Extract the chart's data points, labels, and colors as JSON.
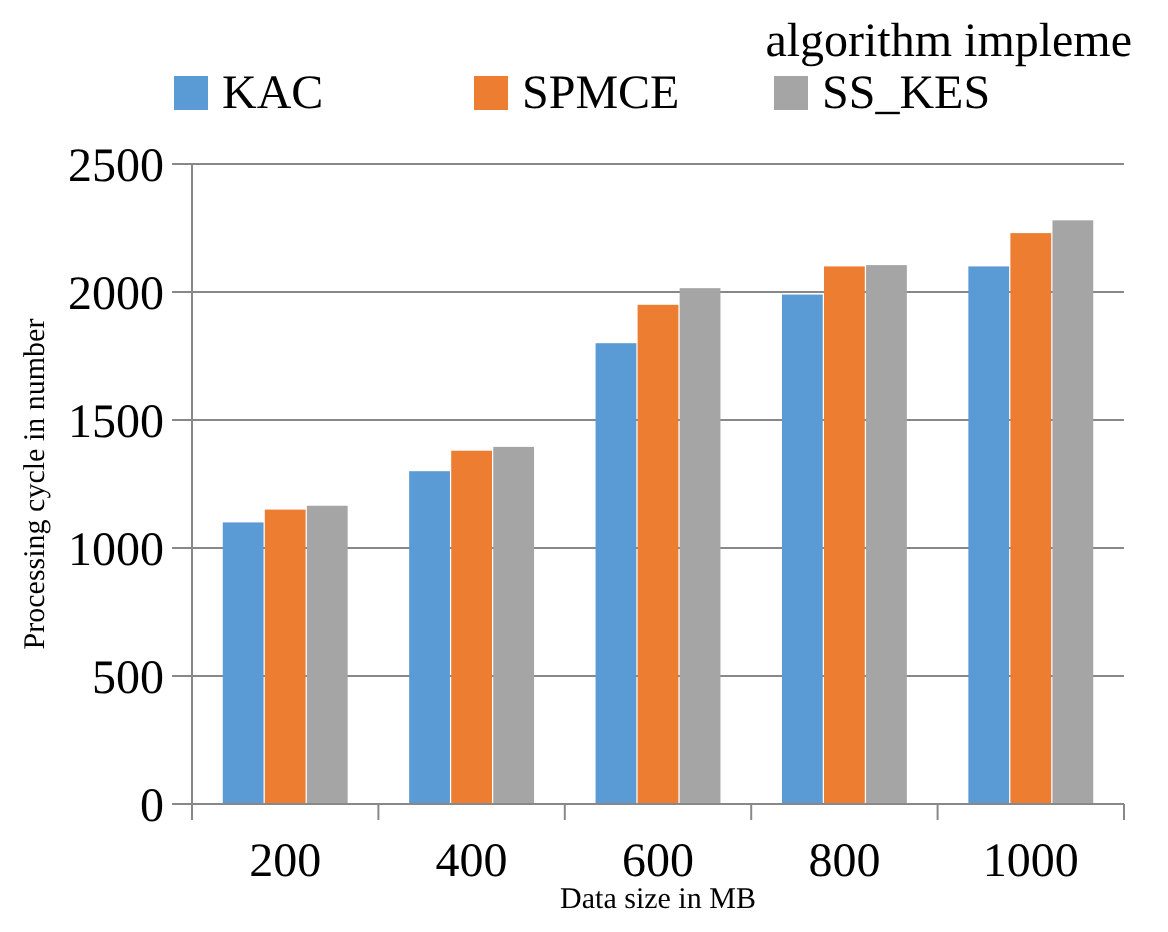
{
  "chart_data": {
    "type": "bar",
    "title": "algorithm impleme",
    "xlabel": "Data size in MB",
    "ylabel": "Processing cycle in number",
    "categories": [
      "200",
      "400",
      "600",
      "800",
      "1000"
    ],
    "series": [
      {
        "name": "KAC",
        "color": "#5b9bd5",
        "values": [
          1100,
          1300,
          1800,
          1990,
          2100
        ]
      },
      {
        "name": "SPMCE",
        "color": "#ed7d31",
        "values": [
          1150,
          1380,
          1950,
          2100,
          2230
        ]
      },
      {
        "name": "SS_KES",
        "color": "#a5a5a5",
        "values": [
          1165,
          1395,
          2015,
          2105,
          2280
        ]
      }
    ],
    "ylim": [
      0,
      2500
    ],
    "yticks": [
      0,
      500,
      1000,
      1500,
      2000,
      2500
    ],
    "grid": "y",
    "legend": "top"
  }
}
